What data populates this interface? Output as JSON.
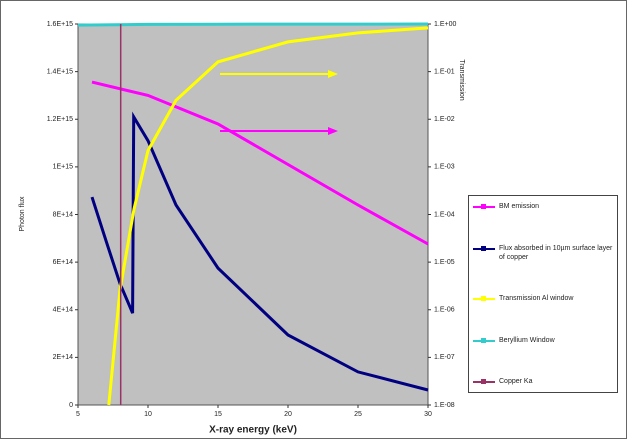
{
  "chart_data": {
    "type": "line",
    "x_label": "X-ray energy (keV)",
    "y_label": "Photon flux",
    "y2_label": "Transmission",
    "xlim": [
      5,
      30
    ],
    "xticks": [
      5,
      10,
      15,
      20,
      25,
      30
    ],
    "ylim": [
      0,
      1600000000000000.0
    ],
    "yticks": [
      {
        "value": 0,
        "label": "0"
      },
      {
        "value": 200000000000000.0,
        "label": "2E+14"
      },
      {
        "value": 400000000000000.0,
        "label": "4E+14"
      },
      {
        "value": 600000000000000.0,
        "label": "6E+14"
      },
      {
        "value": 800000000000000.0,
        "label": "8E+14"
      },
      {
        "value": 1000000000000000.0,
        "label": "1E+15"
      },
      {
        "value": 1200000000000000.0,
        "label": "1.2E+15"
      },
      {
        "value": 1400000000000000.0,
        "label": "1.4E+15"
      },
      {
        "value": 1600000000000000.0,
        "label": "1.6E+15"
      }
    ],
    "y2lim": [
      1e-08,
      1
    ],
    "y2scale": "log",
    "y2ticks": [
      {
        "value": 1e-08,
        "label": "1.E-08"
      },
      {
        "value": 1e-07,
        "label": "1.E-07"
      },
      {
        "value": 1e-06,
        "label": "1.E-06"
      },
      {
        "value": 1e-05,
        "label": "1.E-05"
      },
      {
        "value": 0.0001,
        "label": "1.E-04"
      },
      {
        "value": 0.001,
        "label": "1.E-03"
      },
      {
        "value": 0.01,
        "label": "1.E-02"
      },
      {
        "value": 0.1,
        "label": "1.E-01"
      },
      {
        "value": 1,
        "label": "1.E+00"
      }
    ],
    "plot_background": "#c0c0c0",
    "series": [
      {
        "name": "BM emission",
        "color": "#ff00ff",
        "x": [
          6,
          10,
          15,
          20,
          25,
          30
        ],
        "values": [
          1356000000000000.0,
          1300000000000000.0,
          1180000000000000.0,
          1010000000000000.0,
          840000000000000.0,
          676000000000000.0
        ]
      },
      {
        "name": "Flux absorbed in 10µm surface layer of copper",
        "color": "#000080",
        "x": [
          6,
          7,
          8,
          8.9,
          8.98,
          10,
          12,
          15,
          20,
          25,
          30
        ],
        "values": [
          873000000000000.0,
          690000000000000.0,
          510000000000000.0,
          386000000000000.0,
          1210000000000000.0,
          1110000000000000.0,
          840000000000000.0,
          575000000000000.0,
          294000000000000.0,
          139000000000000.0,
          63000000000000.0
        ]
      },
      {
        "name": "Transmission Al window",
        "color": "#ffff00",
        "axis": "y2",
        "x": [
          7.2,
          8,
          9,
          10,
          12,
          15,
          20,
          25,
          30
        ],
        "values": [
          1e-08,
          2.6e-06,
          0.00013,
          0.0022,
          0.025,
          0.16,
          0.42,
          0.65,
          0.83
        ]
      },
      {
        "name": "Beryllium Window",
        "color": "#33cccc",
        "axis": "y2",
        "x": [
          5,
          10,
          15,
          20,
          25,
          30
        ],
        "values": [
          0.95,
          0.98,
          0.99,
          0.995,
          0.997,
          0.998
        ]
      },
      {
        "name": "Copper Ka",
        "color": "#993366",
        "x": [
          8.05,
          8.05
        ],
        "values": [
          0,
          1600000000000000.0
        ]
      }
    ]
  }
}
